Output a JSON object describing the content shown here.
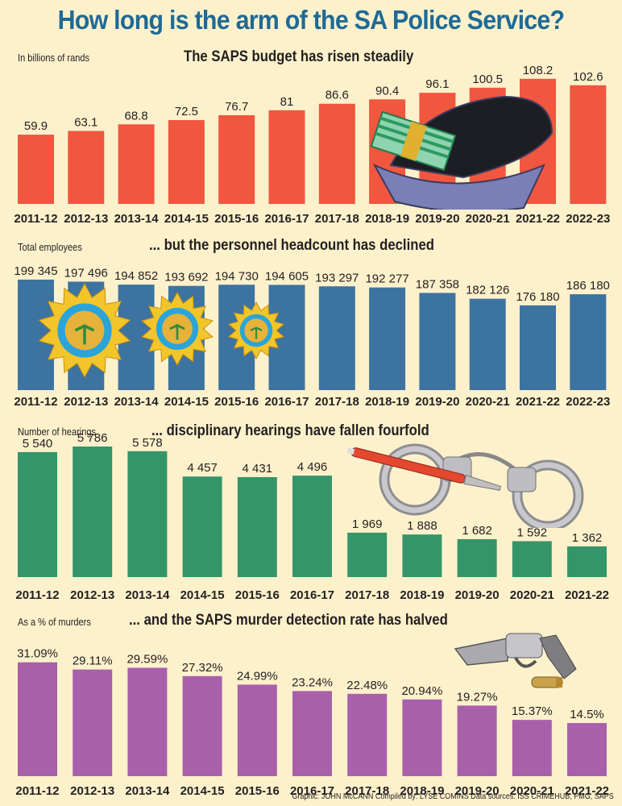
{
  "title": "How long is the arm of the SA Police Service?",
  "credit": "Graphic: JOHN McCANN  Compiled by: LYSE COMINS  Data sources: ISS CRIMEHUB, PMG, SAPS",
  "colors": {
    "title": "#1f6a95",
    "budget": "#f1563f",
    "headcount": "#3d73a1",
    "hearings": "#35956a",
    "murder": "#a960ab",
    "background": "#fdf1cc"
  },
  "chart_data": [
    {
      "type": "bar",
      "title": "The SAPS budget has risen steadily",
      "ylabel": "In billions of rands",
      "xlabel": "",
      "categories": [
        "2011-12",
        "2012-13",
        "2013-14",
        "2014-15",
        "2015-16",
        "2016-17",
        "2017-18",
        "2018-19",
        "2019-20",
        "2020-21",
        "2021-22",
        "2022-23"
      ],
      "values": [
        59.9,
        63.1,
        68.8,
        72.5,
        76.7,
        81,
        86.6,
        90.4,
        96.1,
        100.5,
        108.2,
        102.6
      ],
      "labels": [
        "59.9",
        "63.1",
        "68.8",
        "72.5",
        "76.7",
        "81",
        "86.6",
        "90.4",
        "96.1",
        "100.5",
        "108.2",
        "102.6"
      ],
      "ylim": [
        0,
        115
      ],
      "grid": false
    },
    {
      "type": "bar",
      "title": "... but the personnel headcount has declined",
      "ylabel": "Total employees",
      "xlabel": "",
      "categories": [
        "2011-12",
        "2012-13",
        "2013-14",
        "2014-15",
        "2015-16",
        "2016-17",
        "2017-18",
        "2018-19",
        "2019-20",
        "2020-21",
        "2021-22",
        "2022-23"
      ],
      "values": [
        199345,
        197496,
        194852,
        193692,
        194730,
        194605,
        193297,
        192277,
        187358,
        182126,
        176180,
        186180
      ],
      "labels": [
        "199 345",
        "197 496",
        "194 852",
        "193 692",
        "194 730",
        "194 605",
        "193 297",
        "192 277",
        "187 358",
        "182 126",
        "176 180",
        "186 180"
      ],
      "ylim": [
        100000,
        200000
      ],
      "grid": false
    },
    {
      "type": "bar",
      "title": "... disciplinary hearings have fallen fourfold",
      "ylabel": "Number of hearings",
      "xlabel": "",
      "categories": [
        "2011-12",
        "2012-13",
        "2013-14",
        "2014-15",
        "2015-16",
        "2016-17",
        "2017-18",
        "2018-19",
        "2019-20",
        "2020-21",
        "2021-22"
      ],
      "values": [
        5540,
        5786,
        5578,
        4457,
        4431,
        4496,
        1969,
        1888,
        1682,
        1592,
        1362
      ],
      "labels": [
        "5 540",
        "5 786",
        "5 578",
        "4 457",
        "4 431",
        "4 496",
        "1 969",
        "1 888",
        "1 682",
        "1 592",
        "1 362"
      ],
      "ylim": [
        0,
        6000
      ],
      "grid": false
    },
    {
      "type": "bar",
      "title": "... and the SAPS murder detection rate has halved",
      "ylabel": "As a % of murders",
      "xlabel": "",
      "categories": [
        "2011-12",
        "2012-13",
        "2013-14",
        "2014-15",
        "2015-16",
        "2016-17",
        "2017-18",
        "2018-19",
        "2019-20",
        "2020-21",
        "2021-22"
      ],
      "values": [
        31.09,
        29.11,
        29.59,
        27.32,
        24.99,
        23.24,
        22.48,
        20.94,
        19.27,
        15.37,
        14.5
      ],
      "labels": [
        "31.09%",
        "29.11%",
        "29.59%",
        "27.32%",
        "24.99%",
        "23.24%",
        "22.48%",
        "20.94%",
        "19.27%",
        "15.37%",
        "14.5%"
      ],
      "ylim": [
        0,
        33
      ],
      "grid": false
    }
  ]
}
